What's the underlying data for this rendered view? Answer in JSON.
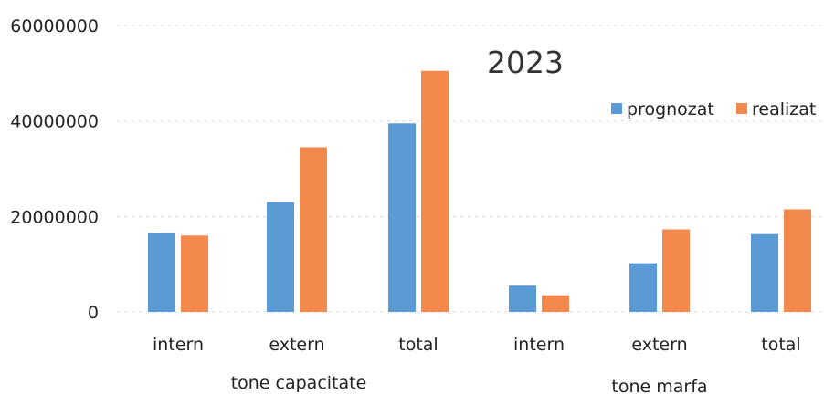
{
  "chart_data": {
    "type": "bar",
    "title": "2023",
    "xlabel": "",
    "ylabel": "",
    "ylim": [
      0,
      60000000
    ],
    "yticks": [
      "0",
      "20000000",
      "40000000",
      "60000000"
    ],
    "grid": true,
    "legend_position": "top-right",
    "categories": [
      "intern",
      "extern",
      "total",
      "intern",
      "extern",
      "total"
    ],
    "groups": [
      {
        "label": "tone capacitate",
        "categories": [
          0,
          1,
          2
        ]
      },
      {
        "label": "tone marfa",
        "categories": [
          3,
          4,
          5
        ]
      }
    ],
    "series": [
      {
        "name": "prognozat",
        "color": "#5b9bd5",
        "values": [
          16500000,
          23000000,
          39500000,
          5500000,
          10200000,
          16300000
        ]
      },
      {
        "name": "realizat",
        "color": "#f4894d",
        "values": [
          16000000,
          34500000,
          50500000,
          3500000,
          17300000,
          21500000
        ]
      }
    ]
  }
}
